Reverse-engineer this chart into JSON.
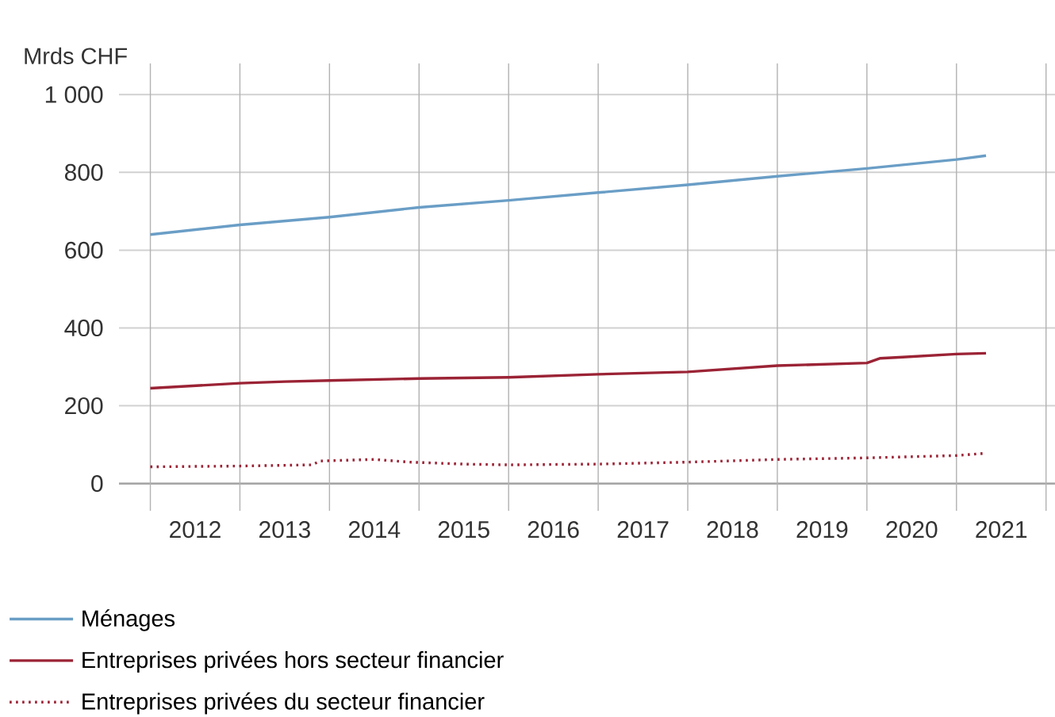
{
  "chart_data": {
    "type": "line",
    "ylabel": "Mrds CHF",
    "legend": "bottom",
    "grid": true,
    "xlim": [
      2011.65,
      2022.1
    ],
    "ylim": [
      -70,
      1080
    ],
    "xticks": [
      {
        "value": 2012,
        "label": null
      },
      {
        "value": 2013,
        "label": null
      },
      {
        "value": 2014,
        "label": null
      },
      {
        "value": 2015,
        "label": null
      },
      {
        "value": 2016,
        "label": null
      },
      {
        "value": 2017,
        "label": null
      },
      {
        "value": 2018,
        "label": null
      },
      {
        "value": 2019,
        "label": null
      },
      {
        "value": 2020,
        "label": null
      },
      {
        "value": 2021,
        "label": null
      },
      {
        "value": 2022,
        "label": null
      },
      {
        "value": 2012.5,
        "label": "2012"
      },
      {
        "value": 2013.5,
        "label": "2013"
      },
      {
        "value": 2014.5,
        "label": "2014"
      },
      {
        "value": 2015.5,
        "label": "2015"
      },
      {
        "value": 2016.5,
        "label": "2016"
      },
      {
        "value": 2017.5,
        "label": "2017"
      },
      {
        "value": 2018.5,
        "label": "2018"
      },
      {
        "value": 2019.5,
        "label": "2019"
      },
      {
        "value": 2020.5,
        "label": "2020"
      },
      {
        "value": 2021.5,
        "label": "2021"
      }
    ],
    "yticks": [
      0,
      200,
      400,
      600,
      800,
      {
        "value": 1000,
        "label": "1 000"
      }
    ],
    "series": [
      {
        "name": "Ménages",
        "color": "#6a9ec6",
        "line_style": "solid",
        "x": [
          2012,
          2013,
          2014,
          2015,
          2016,
          2017,
          2018,
          2019,
          2020,
          2021,
          2021.33
        ],
        "values": [
          640,
          665,
          685,
          710,
          728,
          748,
          768,
          790,
          810,
          833,
          843
        ]
      },
      {
        "name": "Entreprises privées hors secteur financier",
        "color": "#9b2335",
        "line_style": "solid",
        "x": [
          2012,
          2013,
          2013.5,
          2014,
          2015,
          2016,
          2017,
          2018,
          2019,
          2020,
          2020.15,
          2020.4,
          2021,
          2021.33
        ],
        "values": [
          245,
          258,
          262,
          265,
          270,
          273,
          281,
          287,
          303,
          310,
          322,
          325,
          333,
          335
        ]
      },
      {
        "name": "Entreprises privées du secteur financier",
        "color": "#9b2335",
        "line_style": "dotted",
        "x": [
          2012,
          2013,
          2013.8,
          2013.9,
          2014.5,
          2014.9,
          2015.5,
          2016,
          2017,
          2018,
          2019,
          2020,
          2021,
          2021.33
        ],
        "values": [
          43,
          45,
          48,
          58,
          62,
          55,
          50,
          48,
          50,
          55,
          62,
          66,
          72,
          78
        ]
      }
    ]
  }
}
